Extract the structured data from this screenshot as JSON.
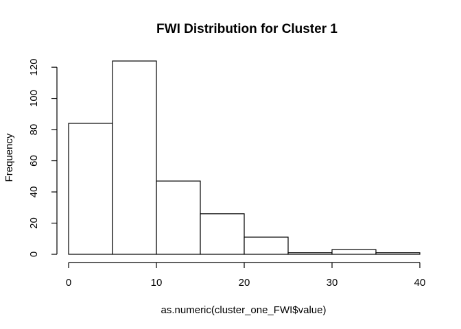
{
  "chart_data": {
    "type": "bar",
    "title": "FWI Distribution for Cluster 1",
    "xlabel": "as.numeric(cluster_one_FWI$value)",
    "ylabel": "Frequency",
    "bins": [
      {
        "start": 0,
        "end": 5,
        "count": 84
      },
      {
        "start": 5,
        "end": 10,
        "count": 124
      },
      {
        "start": 10,
        "end": 15,
        "count": 47
      },
      {
        "start": 15,
        "end": 20,
        "count": 26
      },
      {
        "start": 20,
        "end": 25,
        "count": 11
      },
      {
        "start": 25,
        "end": 30,
        "count": 1
      },
      {
        "start": 30,
        "end": 35,
        "count": 3
      },
      {
        "start": 35,
        "end": 40,
        "count": 1
      }
    ],
    "xlim": [
      0,
      40
    ],
    "ylim": [
      0,
      124
    ],
    "x_ticks": [
      "0",
      "10",
      "20",
      "30",
      "40"
    ],
    "y_ticks": [
      "0",
      "20",
      "40",
      "60",
      "80",
      "100",
      "120"
    ],
    "grid": false,
    "colors": {
      "fill": "#ffffff",
      "stroke": "#000000"
    }
  }
}
